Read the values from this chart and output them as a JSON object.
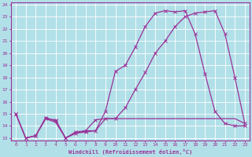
{
  "xlabel": "Windchill (Refroidissement éolien,°C)",
  "bg_color": "#b2e0e8",
  "grid_color": "#ffffff",
  "line_color": "#993399",
  "xlim": [
    -0.5,
    23.5
  ],
  "ylim": [
    12.8,
    24.2
  ],
  "xticks": [
    0,
    1,
    2,
    3,
    4,
    5,
    6,
    7,
    8,
    9,
    10,
    11,
    12,
    13,
    14,
    15,
    16,
    17,
    18,
    19,
    20,
    21,
    22,
    23
  ],
  "yticks": [
    13,
    14,
    15,
    16,
    17,
    18,
    19,
    20,
    21,
    22,
    23,
    24
  ],
  "line1_x": [
    0,
    1,
    2,
    3,
    4,
    5,
    6,
    7,
    8,
    9,
    10,
    11,
    12,
    13,
    14,
    15,
    16,
    17,
    18,
    19,
    20,
    21,
    22,
    23
  ],
  "line1_y": [
    15.0,
    13.0,
    13.2,
    14.6,
    14.5,
    13.0,
    13.4,
    13.5,
    13.6,
    15.2,
    18.5,
    19.0,
    20.5,
    22.2,
    23.3,
    23.5,
    23.4,
    23.5,
    21.6,
    18.3,
    15.2,
    14.2,
    14.0,
    14.0
  ],
  "line2_x": [
    0,
    1,
    2,
    3,
    4,
    5,
    6,
    7,
    8,
    9,
    10,
    11,
    12,
    13,
    14,
    15,
    16,
    17,
    18,
    19,
    20,
    21,
    22,
    23
  ],
  "line2_y": [
    15.0,
    13.0,
    13.2,
    14.7,
    14.4,
    13.0,
    13.5,
    13.6,
    14.5,
    14.6,
    14.6,
    15.5,
    17.0,
    18.4,
    20.0,
    21.0,
    22.2,
    23.0,
    23.3,
    23.4,
    23.5,
    21.6,
    18.0,
    14.2
  ],
  "line3_x": [
    0,
    1,
    2,
    3,
    4,
    5,
    6,
    7,
    8,
    9,
    10,
    11,
    12,
    13,
    14,
    15,
    16,
    17,
    18,
    19,
    20,
    21,
    22,
    23
  ],
  "line3_y": [
    15.0,
    13.0,
    13.2,
    14.6,
    14.3,
    13.0,
    13.4,
    13.6,
    13.6,
    14.6,
    14.6,
    14.6,
    14.6,
    14.6,
    14.6,
    14.6,
    14.6,
    14.6,
    14.6,
    14.6,
    14.6,
    14.6,
    14.6,
    14.2
  ]
}
